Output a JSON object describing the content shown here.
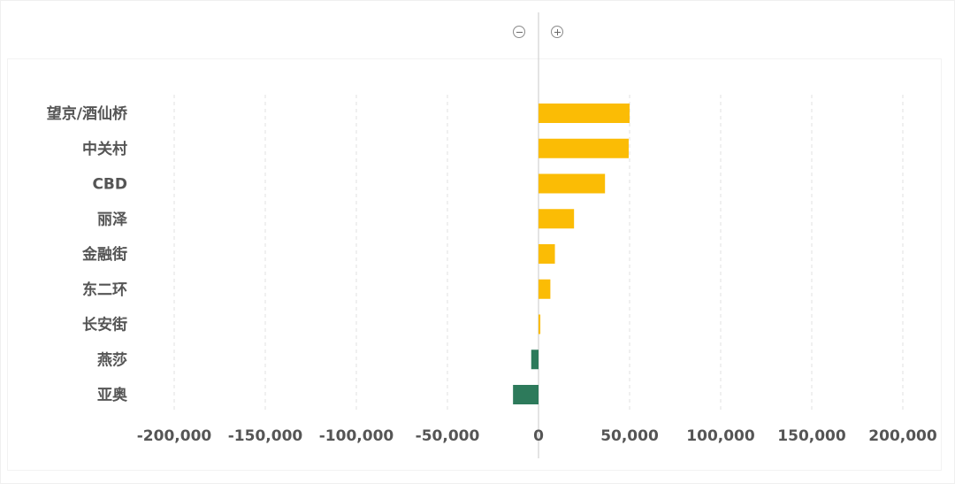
{
  "controls": {
    "collapse_icon": "minus-circle-icon",
    "expand_icon": "plus-circle-icon"
  },
  "chart_data": {
    "type": "bar",
    "orientation": "horizontal",
    "categories": [
      "望京/酒仙桥",
      "中关村",
      "CBD",
      "丽泽",
      "金融街",
      "东二环",
      "长安街",
      "燕莎",
      "亚奥"
    ],
    "values": [
      50000,
      49500,
      36500,
      19500,
      9000,
      6500,
      1000,
      -4000,
      -14000
    ],
    "xlim": [
      -200000,
      200000
    ],
    "xticks": [
      -200000,
      -150000,
      -100000,
      -50000,
      0,
      50000,
      100000,
      150000,
      200000
    ],
    "xtick_labels": [
      "-200,000",
      "-150,000",
      "-100,000",
      "-50,000",
      "0",
      "50,000",
      "100,000",
      "150,000",
      "200,000"
    ],
    "grid": "vertical-dashed",
    "colors": {
      "positive": "#FBBC05",
      "negative": "#2D7A5B",
      "grid": "#e2e2e2",
      "zero_line": "#c8c8c8",
      "text": "#555555"
    },
    "title": "",
    "xlabel": "",
    "ylabel": ""
  }
}
